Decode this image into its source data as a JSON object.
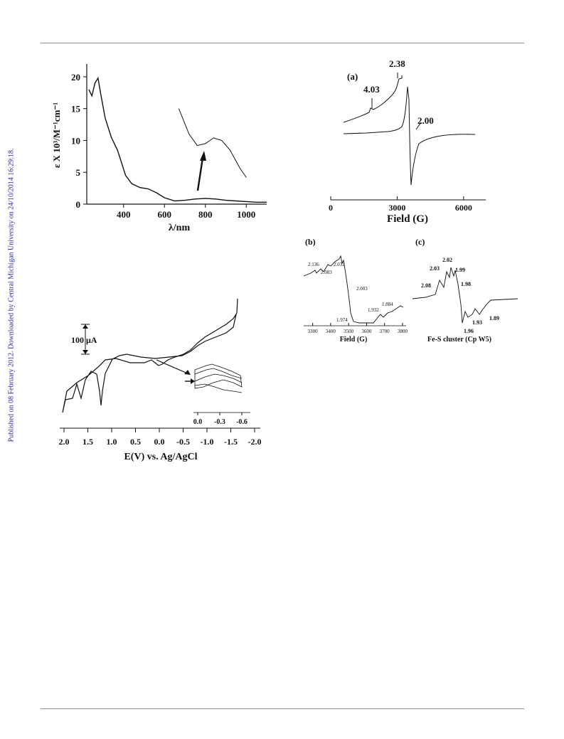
{
  "sidebar_text": "Published on 08 February 2012. Downloaded by Central Michigan University on 24/10/2014 16:29:18.",
  "figures": {
    "uv": {
      "ylabel": "ε X 10³/M⁻¹cm⁻¹",
      "xlabel": "λ/nm",
      "x_ticks": [
        "400",
        "600",
        "800",
        "1000"
      ],
      "y_ticks": [
        "0",
        "5",
        "10",
        "15",
        "20"
      ]
    },
    "epr_a": {
      "panel": "(a)",
      "xlabel": "Field (G)",
      "x_ticks": [
        "0",
        "3000",
        "6000"
      ],
      "labels": [
        "2.38",
        "4.03",
        "2.00"
      ]
    },
    "epr_b": {
      "panel": "(b)",
      "xlabel": "Field (G)",
      "x_ticks": [
        "3300",
        "3400",
        "3500",
        "3600",
        "3700",
        "3800"
      ],
      "labels": [
        "2.136",
        "2.083",
        "2.032",
        "2.003",
        "1.974",
        "1.932",
        "1.884"
      ]
    },
    "epr_c": {
      "panel": "(c)",
      "caption": "Fe-S cluster (Cp W5)",
      "labels": [
        "2.02",
        "2.03",
        "1.99",
        "1.98",
        "2.08",
        "1.93",
        "1.89",
        "1.96"
      ]
    },
    "cv": {
      "scale": "100 μA",
      "xlabel": "E(V) vs. Ag/AgCl",
      "x_ticks": [
        "2.0",
        "1.5",
        "1.0",
        "0.5",
        "0.0",
        "-0.5",
        "-1.0",
        "-1.5",
        "-2.0"
      ],
      "inset_ticks": [
        "0.0",
        "-0.3",
        "-0.6"
      ]
    }
  },
  "chart_data": [
    {
      "type": "line",
      "xlabel": "λ/nm",
      "ylabel": "ε X 10³/M⁻¹cm⁻¹",
      "xlim": [
        220,
        1100
      ],
      "ylim": [
        0,
        22
      ],
      "series": [
        {
          "x": [
            230,
            245,
            260,
            275,
            290,
            310,
            340,
            370,
            390,
            410,
            440,
            480,
            520,
            560,
            600,
            650,
            700,
            750,
            800,
            850,
            900,
            950,
            1000,
            1050,
            1100
          ],
          "y": [
            18.0,
            17.0,
            19.0,
            19.8,
            17.0,
            13.5,
            10.5,
            8.5,
            6.5,
            4.5,
            3.2,
            2.6,
            2.4,
            1.8,
            1.0,
            0.5,
            0.6,
            0.8,
            0.9,
            0.8,
            0.6,
            0.5,
            0.4,
            0.3,
            0.3
          ]
        }
      ],
      "inset": {
        "x": [
          670,
          720,
          760,
          800,
          840,
          880,
          920,
          970,
          1000
        ],
        "y": [
          15.0,
          11.0,
          9.2,
          9.5,
          10.4,
          10.0,
          8.5,
          5.6,
          4.2
        ]
      }
    },
    {
      "type": "line",
      "xlabel": "Field (G)",
      "xlim": [
        0,
        7000
      ],
      "annotations": [
        "4.03",
        "2.38",
        "2.00"
      ]
    },
    {
      "type": "line",
      "xlabel": "Field (G)",
      "xlim": [
        3250,
        3820
      ],
      "annotations": [
        "2.136",
        "2.083",
        "2.032",
        "2.003",
        "1.974",
        "1.932",
        "1.884"
      ]
    },
    {
      "type": "line",
      "annotations": [
        "2.08",
        "2.03",
        "2.02",
        "1.99",
        "1.98",
        "1.96",
        "1.93",
        "1.89"
      ]
    },
    {
      "type": "line",
      "xlabel": "E(V) vs. Ag/AgCl",
      "xlim": [
        2.0,
        -2.0
      ],
      "x_ticks": [
        2.0,
        1.5,
        1.0,
        0.5,
        0.0,
        -0.5,
        -1.0,
        -1.5,
        -2.0
      ]
    }
  ]
}
